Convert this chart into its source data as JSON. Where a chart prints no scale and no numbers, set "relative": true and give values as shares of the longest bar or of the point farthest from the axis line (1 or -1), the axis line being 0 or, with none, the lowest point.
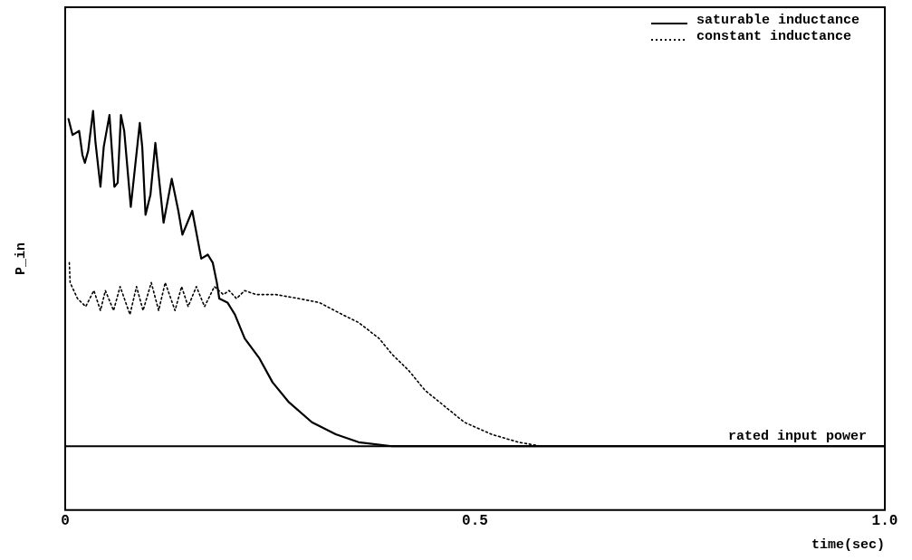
{
  "chart_data": {
    "type": "line",
    "relative": true,
    "xlabel": "time(sec)",
    "ylabel": "P_in",
    "xlim": [
      0,
      1.0
    ],
    "xticks": [
      0,
      0.5,
      {
        "value": 1.0,
        "label": "1.0"
      }
    ],
    "grid": false,
    "legend": "top right",
    "marker": "none",
    "ref_lines": [
      {
        "axis": "y",
        "value": 0.16,
        "label": "rated input power",
        "color": "#000000",
        "line_style": "solid"
      }
    ],
    "series": [
      {
        "name": "saturable inductance",
        "color": "#000000",
        "line_style": "solid",
        "x": [
          0.004,
          0.009,
          0.017,
          0.021,
          0.024,
          0.028,
          0.034,
          0.037,
          0.043,
          0.047,
          0.054,
          0.06,
          0.064,
          0.068,
          0.072,
          0.08,
          0.091,
          0.094,
          0.098,
          0.104,
          0.11,
          0.115,
          0.12,
          0.13,
          0.138,
          0.143,
          0.155,
          0.166,
          0.174,
          0.18,
          0.185,
          0.188,
          0.198,
          0.207,
          0.219,
          0.237,
          0.253,
          0.273,
          0.301,
          0.33,
          0.358,
          0.399,
          0.439,
          0.48,
          0.628,
          1.0
        ],
        "values": [
          0.98,
          0.94,
          0.95,
          0.89,
          0.87,
          0.9,
          1.0,
          0.92,
          0.81,
          0.91,
          0.99,
          0.81,
          0.82,
          0.99,
          0.95,
          0.76,
          0.97,
          0.91,
          0.74,
          0.79,
          0.92,
          0.82,
          0.72,
          0.83,
          0.75,
          0.69,
          0.75,
          0.63,
          0.64,
          0.62,
          0.57,
          0.53,
          0.52,
          0.49,
          0.43,
          0.38,
          0.32,
          0.27,
          0.22,
          0.19,
          0.17,
          0.16,
          0.16,
          0.16,
          0.16,
          0.16
        ]
      },
      {
        "name": "constant inductance",
        "color": "#000000",
        "line_style": "dotted",
        "x": [
          0.005,
          0.006,
          0.015,
          0.025,
          0.035,
          0.043,
          0.049,
          0.059,
          0.067,
          0.079,
          0.087,
          0.095,
          0.105,
          0.114,
          0.122,
          0.134,
          0.142,
          0.15,
          0.16,
          0.17,
          0.182,
          0.193,
          0.2,
          0.209,
          0.219,
          0.233,
          0.257,
          0.285,
          0.31,
          0.338,
          0.358,
          0.383,
          0.399,
          0.419,
          0.439,
          0.463,
          0.487,
          0.52,
          0.553,
          0.581,
          0.609
        ],
        "values": [
          0.62,
          0.57,
          0.53,
          0.51,
          0.55,
          0.5,
          0.55,
          0.5,
          0.56,
          0.49,
          0.56,
          0.5,
          0.57,
          0.5,
          0.57,
          0.5,
          0.56,
          0.51,
          0.56,
          0.51,
          0.56,
          0.54,
          0.55,
          0.53,
          0.55,
          0.54,
          0.54,
          0.53,
          0.52,
          0.49,
          0.47,
          0.43,
          0.39,
          0.35,
          0.3,
          0.26,
          0.22,
          0.19,
          0.17,
          0.16,
          0.16
        ]
      }
    ]
  }
}
